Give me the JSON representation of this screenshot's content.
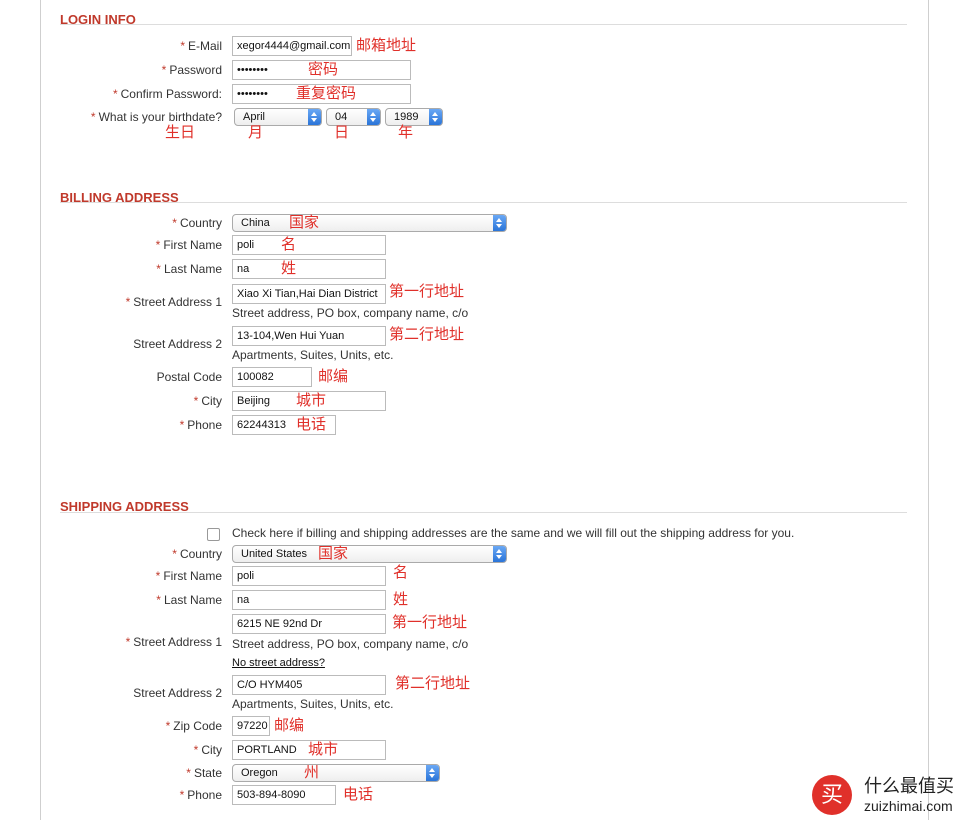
{
  "required_mark": "*",
  "sections": [
    {
      "title": "LOGIN INFO",
      "rows": [
        {
          "label": "E-Mail",
          "required": true,
          "kind": "input",
          "value": "xegor4444@gmail.com",
          "note": "邮箱地址"
        },
        {
          "label": "Password",
          "required": true,
          "kind": "input",
          "value": "••••••••",
          "note": "密码"
        },
        {
          "label": "Confirm Password:",
          "required": true,
          "kind": "input",
          "value": "••••••••",
          "note": "重复密码"
        },
        {
          "label": "What is your birthdate?",
          "required": true,
          "kind": "date",
          "selects": [
            "April",
            "04",
            "1989"
          ],
          "notes": [
            "生日",
            "月",
            "日",
            "年"
          ]
        }
      ]
    },
    {
      "title": "BILLING ADDRESS",
      "rows": [
        {
          "label": "Country",
          "required": true,
          "kind": "select",
          "value": "China",
          "note": "国家"
        },
        {
          "label": "First Name",
          "required": true,
          "kind": "input",
          "value": "poli",
          "note": "名"
        },
        {
          "label": "Last Name",
          "required": true,
          "kind": "input",
          "value": "na",
          "note": "姓"
        },
        {
          "label": "Street Address 1",
          "required": true,
          "kind": "input",
          "value": "Xiao Xi Tian,Hai Dian District",
          "note": "第一行地址",
          "hint": "Street address, PO box, company name, c/o"
        },
        {
          "label": "Street Address 2",
          "required": false,
          "kind": "input",
          "value": "13-104,Wen Hui Yuan",
          "note": "第二行地址",
          "hint": "Apartments, Suites, Units, etc."
        },
        {
          "label": "Postal Code",
          "required": false,
          "kind": "input",
          "value": "100082",
          "note": "邮编"
        },
        {
          "label": "City",
          "required": true,
          "kind": "input",
          "value": "Beijing",
          "note": "城市"
        },
        {
          "label": "Phone",
          "required": true,
          "kind": "input",
          "value": "62244313",
          "note": "电话"
        }
      ]
    },
    {
      "title": "SHIPPING ADDRESS",
      "checkbox": "Check here if billing and shipping addresses are the same and we will fill out the shipping address for you.",
      "rows": [
        {
          "label": "Country",
          "required": true,
          "kind": "select",
          "value": "United States",
          "note": "国家"
        },
        {
          "label": "First Name",
          "required": true,
          "kind": "input",
          "value": "poli",
          "note": "名"
        },
        {
          "label": "Last Name",
          "required": true,
          "kind": "input",
          "value": "na",
          "note": "姓"
        },
        {
          "label": "Street Address 1",
          "required": true,
          "kind": "input",
          "value": "6215 NE 92nd Dr",
          "note": "第一行地址",
          "hint": "Street address, PO box, company name, c/o",
          "link": "No street address?"
        },
        {
          "label": "Street Address 2",
          "required": false,
          "kind": "input",
          "value": "C/O HYM405",
          "note": "第二行地址",
          "hint": "Apartments, Suites, Units, etc."
        },
        {
          "label": "Zip Code",
          "required": true,
          "kind": "input",
          "value": "97220",
          "note": "邮编"
        },
        {
          "label": "City",
          "required": true,
          "kind": "input",
          "value": "PORTLAND",
          "note": "城市"
        },
        {
          "label": "State",
          "required": true,
          "kind": "select",
          "value": "Oregon",
          "note": "州"
        },
        {
          "label": "Phone",
          "required": true,
          "kind": "input",
          "value": "503-894-8090",
          "note": "电话"
        }
      ]
    }
  ],
  "watermark": {
    "logo": "买",
    "brand": "什么最值买",
    "site": "zuizhimai.com"
  }
}
